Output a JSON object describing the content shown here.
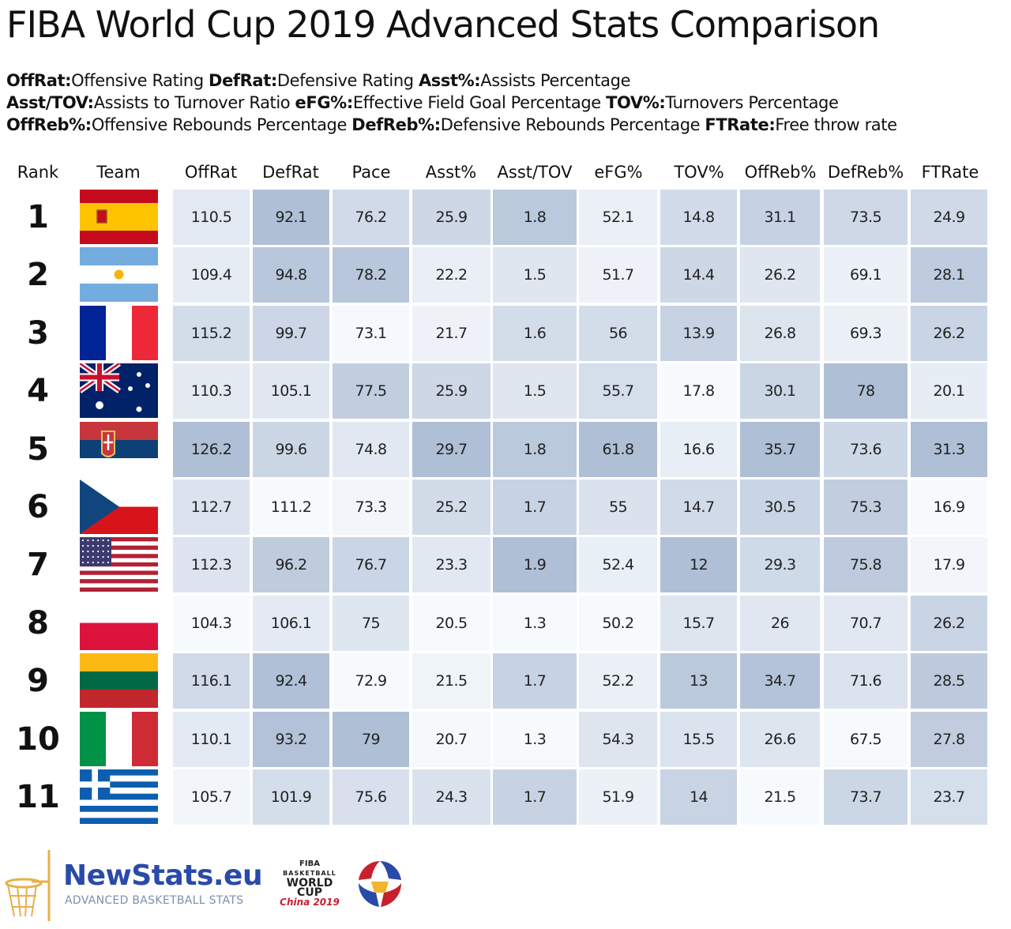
{
  "title": "FIBA World Cup 2019 Advanced Stats Comparison",
  "legend": [
    [
      {
        "key": "OffRat:",
        "desc": "Offensive Rating "
      },
      {
        "key": "DefRat:",
        "desc": "Defensive Rating "
      },
      {
        "key": "Asst%:",
        "desc": "Assists Percentage"
      }
    ],
    [
      {
        "key": "Asst/TOV:",
        "desc": "Assists to Turnover Ratio "
      },
      {
        "key": "eFG%:",
        "desc": "Effective Field Goal Percentage "
      },
      {
        "key": "TOV%:",
        "desc": "Turnovers Percentage"
      }
    ],
    [
      {
        "key": "OffReb%:",
        "desc": "Offensive Rebounds Percentage "
      },
      {
        "key": "DefReb%:",
        "desc": "Defensive Rebounds Percentage "
      },
      {
        "key": "FTRate:",
        "desc": "Free throw rate"
      }
    ]
  ],
  "chart_data": {
    "type": "table",
    "title": "FIBA World Cup 2019 Advanced Stats Comparison",
    "columns": [
      "Rank",
      "Team",
      "OffRat",
      "DefRat",
      "Pace",
      "Asst%",
      "Asst/TOV",
      "eFG%",
      "TOV%",
      "OffReb%",
      "DefReb%",
      "FTRate"
    ],
    "rows": [
      {
        "rank": "1",
        "flag": "spain-flag",
        "values": [
          110.5,
          92.1,
          76.2,
          25.9,
          1.8,
          52.1,
          14.8,
          31.1,
          73.5,
          24.9
        ]
      },
      {
        "rank": "2",
        "flag": "argentina-flag",
        "values": [
          109.4,
          94.8,
          78.2,
          22.2,
          1.5,
          51.7,
          14.4,
          26.2,
          69.1,
          28.1
        ]
      },
      {
        "rank": "3",
        "flag": "france-flag",
        "values": [
          115.2,
          99.7,
          73.1,
          21.7,
          1.6,
          56,
          13.9,
          26.8,
          69.3,
          26.2
        ]
      },
      {
        "rank": "4",
        "flag": "australia-flag",
        "values": [
          110.3,
          105.1,
          77.5,
          25.9,
          1.5,
          55.7,
          17.8,
          30.1,
          78,
          20.1
        ]
      },
      {
        "rank": "5",
        "flag": "serbia-flag",
        "values": [
          126.2,
          99.6,
          74.8,
          29.7,
          1.8,
          61.8,
          16.6,
          35.7,
          73.6,
          31.3
        ]
      },
      {
        "rank": "6",
        "flag": "czech-republic-flag",
        "values": [
          112.7,
          111.2,
          73.3,
          25.2,
          1.7,
          55,
          14.7,
          30.5,
          75.3,
          16.9
        ]
      },
      {
        "rank": "7",
        "flag": "usa-flag",
        "values": [
          112.3,
          96.2,
          76.7,
          23.3,
          1.9,
          52.4,
          12,
          29.3,
          75.8,
          17.9
        ]
      },
      {
        "rank": "8",
        "flag": "poland-flag",
        "values": [
          104.3,
          106.1,
          75,
          20.5,
          1.3,
          50.2,
          15.7,
          26,
          70.7,
          26.2
        ]
      },
      {
        "rank": "9",
        "flag": "lithuania-flag",
        "values": [
          116.1,
          92.4,
          72.9,
          21.5,
          1.7,
          52.2,
          13,
          34.7,
          71.6,
          28.5
        ]
      },
      {
        "rank": "10",
        "flag": "italy-flag",
        "values": [
          110.1,
          93.2,
          79,
          20.7,
          1.3,
          54.3,
          15.5,
          26.6,
          67.5,
          27.8
        ]
      },
      {
        "rank": "11",
        "flag": "greece-flag",
        "values": [
          105.7,
          101.9,
          75.6,
          24.3,
          1.7,
          51.9,
          14,
          21.5,
          73.7,
          23.7
        ]
      }
    ],
    "heatmap_colors": {
      "low": "#f7fafd",
      "high": "#afbfd6"
    },
    "color_direction_note": "darker cell = better value in column"
  },
  "footer": {
    "brand": "NewStats.eu",
    "tagline": "ADVANCED BASKETBALL STATS",
    "event_logo": {
      "org": "FIBA",
      "line1": "BASKETBALL",
      "line2": "WORLD CUP",
      "line3": "China 2019"
    }
  }
}
